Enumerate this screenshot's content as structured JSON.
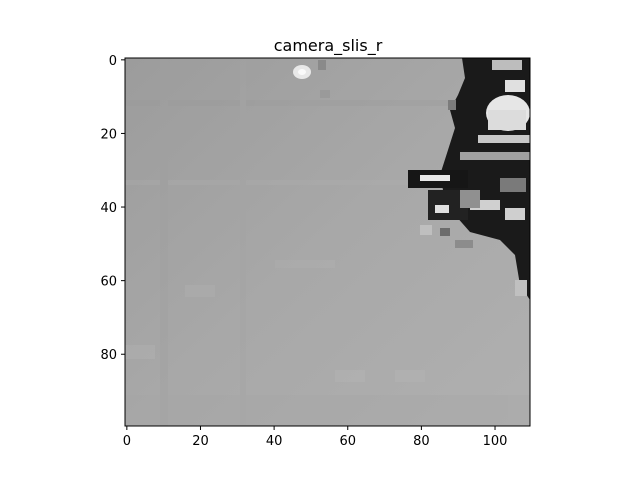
{
  "figure": {
    "title": "camera_slis_r",
    "colormap": "gray",
    "image_shape": {
      "rows": 100,
      "cols": 110
    }
  },
  "x_axis": {
    "ticks": [
      0,
      20,
      40,
      60,
      80,
      100
    ],
    "labels": [
      "0",
      "20",
      "40",
      "60",
      "80",
      "100"
    ],
    "range": [
      -0.5,
      109.5
    ]
  },
  "y_axis": {
    "ticks": [
      0,
      20,
      40,
      60,
      80
    ],
    "labels": [
      "0",
      "20",
      "40",
      "60",
      "80"
    ],
    "range": [
      99.5,
      -0.5
    ]
  },
  "colors": {
    "background_gray": "#a5a5a5",
    "dark_region": "#141414",
    "bright_spot": "#f0f0f0"
  }
}
